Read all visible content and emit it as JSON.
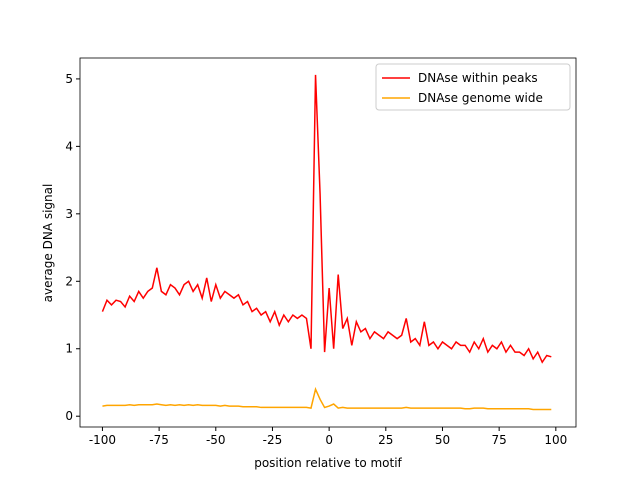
{
  "chart_data": {
    "type": "line",
    "xlabel": "position relative to motif",
    "ylabel": "average DNA signal",
    "x": [
      -100,
      -98,
      -96,
      -94,
      -92,
      -90,
      -88,
      -86,
      -84,
      -82,
      -80,
      -78,
      -76,
      -74,
      -72,
      -70,
      -68,
      -66,
      -64,
      -62,
      -60,
      -58,
      -56,
      -54,
      -52,
      -50,
      -48,
      -46,
      -44,
      -42,
      -40,
      -38,
      -36,
      -34,
      -32,
      -30,
      -28,
      -26,
      -24,
      -22,
      -20,
      -18,
      -16,
      -14,
      -12,
      -10,
      -8,
      -6,
      -4,
      -2,
      0,
      2,
      4,
      6,
      8,
      10,
      12,
      14,
      16,
      18,
      20,
      22,
      24,
      26,
      28,
      30,
      32,
      34,
      36,
      38,
      40,
      42,
      44,
      46,
      48,
      50,
      52,
      54,
      56,
      58,
      60,
      62,
      64,
      66,
      68,
      70,
      72,
      74,
      76,
      78,
      80,
      82,
      84,
      86,
      88,
      90,
      92,
      94,
      96,
      98
    ],
    "series": [
      {
        "name": "DNAse within peaks",
        "color": "#ff0000",
        "values": [
          1.55,
          1.72,
          1.65,
          1.72,
          1.7,
          1.62,
          1.78,
          1.7,
          1.85,
          1.75,
          1.85,
          1.9,
          2.2,
          1.85,
          1.8,
          1.95,
          1.9,
          1.8,
          1.95,
          2.0,
          1.85,
          1.95,
          1.75,
          2.05,
          1.7,
          1.95,
          1.75,
          1.85,
          1.8,
          1.75,
          1.8,
          1.65,
          1.7,
          1.55,
          1.6,
          1.5,
          1.55,
          1.4,
          1.55,
          1.35,
          1.5,
          1.4,
          1.5,
          1.45,
          1.5,
          1.45,
          1.0,
          5.06,
          3.3,
          0.95,
          1.9,
          1.0,
          2.1,
          1.3,
          1.45,
          1.05,
          1.4,
          1.25,
          1.3,
          1.15,
          1.25,
          1.2,
          1.15,
          1.25,
          1.2,
          1.15,
          1.2,
          1.45,
          1.1,
          1.15,
          1.05,
          1.4,
          1.05,
          1.1,
          1.0,
          1.1,
          1.05,
          1.0,
          1.1,
          1.05,
          1.05,
          0.95,
          1.1,
          1.0,
          1.15,
          0.95,
          1.05,
          1.0,
          1.1,
          0.95,
          1.05,
          0.95,
          0.95,
          0.9,
          1.0,
          0.85,
          0.95,
          0.8,
          0.9,
          0.88
        ]
      },
      {
        "name": "DNAse genome wide",
        "color": "#ffa500",
        "values": [
          0.15,
          0.16,
          0.16,
          0.16,
          0.16,
          0.16,
          0.17,
          0.16,
          0.17,
          0.17,
          0.17,
          0.17,
          0.18,
          0.17,
          0.16,
          0.17,
          0.16,
          0.17,
          0.16,
          0.17,
          0.16,
          0.17,
          0.16,
          0.16,
          0.16,
          0.16,
          0.15,
          0.16,
          0.15,
          0.15,
          0.15,
          0.14,
          0.14,
          0.14,
          0.14,
          0.13,
          0.13,
          0.13,
          0.13,
          0.13,
          0.13,
          0.13,
          0.13,
          0.13,
          0.13,
          0.13,
          0.12,
          0.4,
          0.25,
          0.13,
          0.15,
          0.18,
          0.12,
          0.13,
          0.12,
          0.12,
          0.12,
          0.12,
          0.12,
          0.12,
          0.12,
          0.12,
          0.12,
          0.12,
          0.12,
          0.12,
          0.12,
          0.13,
          0.12,
          0.12,
          0.12,
          0.12,
          0.12,
          0.12,
          0.12,
          0.12,
          0.12,
          0.12,
          0.12,
          0.12,
          0.11,
          0.11,
          0.12,
          0.12,
          0.12,
          0.11,
          0.11,
          0.11,
          0.11,
          0.11,
          0.11,
          0.11,
          0.11,
          0.11,
          0.11,
          0.1,
          0.1,
          0.1,
          0.1,
          0.1
        ]
      }
    ],
    "xlim": [
      -109.9,
      108.9
    ],
    "ylim": [
      -0.16,
      5.31
    ],
    "xticks": [
      -100,
      -75,
      -50,
      -25,
      0,
      25,
      50,
      75,
      100
    ],
    "yticks": [
      0,
      1,
      2,
      3,
      4,
      5
    ],
    "legend": "upper right",
    "grid": false
  }
}
